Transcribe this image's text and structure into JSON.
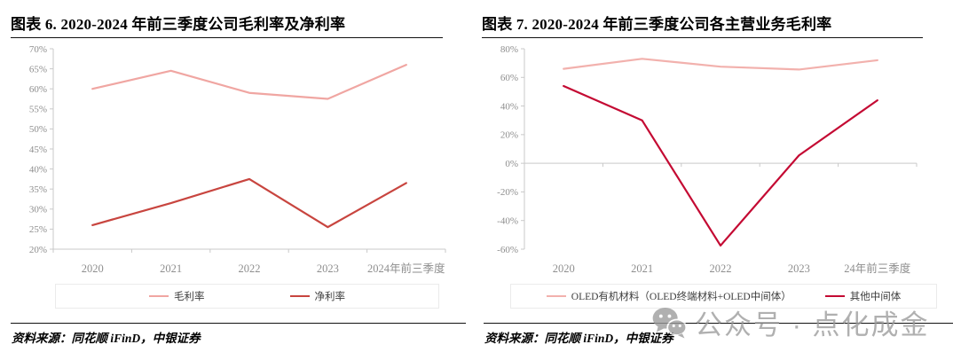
{
  "panels": [
    {
      "title": "图表 6. 2020-2024 年前三季度公司毛利率及净利率",
      "source": "资料来源：同花顺 iFinD，中银证券"
    },
    {
      "title": "图表 7. 2020-2024 年前三季度公司各主营业务毛利率",
      "source": "资料来源：同花顺 iFinD，中银证券"
    }
  ],
  "chart_data": [
    {
      "type": "line",
      "title": "图表 6. 2020-2024 年前三季度公司毛利率及净利率",
      "categories": [
        "2020",
        "2021",
        "2022",
        "2023",
        "2024年前三季度"
      ],
      "series": [
        {
          "name": "毛利率",
          "color": "#F0A6A2",
          "values": [
            60,
            64.5,
            59,
            57.5,
            66
          ]
        },
        {
          "name": "净利率",
          "color": "#C8453F",
          "values": [
            26,
            31.5,
            37.5,
            25.5,
            36.5
          ]
        }
      ],
      "ylim": [
        20,
        70
      ],
      "ytick_step": 5,
      "ytick_labels": [
        "20%",
        "25%",
        "30%",
        "35%",
        "40%",
        "45%",
        "50%",
        "55%",
        "60%",
        "65%",
        "70%"
      ],
      "x_axis_at": 20,
      "grid": false,
      "legend_position": "bottom",
      "axis_color": "#c9c9c9",
      "tick_label_color": "#8e8e8e"
    },
    {
      "type": "line",
      "title": "图表 7. 2020-2024 年前三季度公司各主营业务毛利率",
      "categories": [
        "2020",
        "2021",
        "2022",
        "2023",
        "24年前三季度"
      ],
      "series": [
        {
          "name": "OLED有机材料（OLED终端材料+OLED中间体）",
          "color": "#F2B1AD",
          "values": [
            66,
            73,
            67.5,
            65.5,
            72
          ]
        },
        {
          "name": "其他中间体",
          "color": "#C40A33",
          "values": [
            54,
            30,
            -57.5,
            5.5,
            44
          ]
        }
      ],
      "ylim": [
        -60,
        80
      ],
      "ytick_step": 20,
      "ytick_labels": [
        "-60%",
        "-40%",
        "-20%",
        "0%",
        "20%",
        "40%",
        "60%",
        "80%"
      ],
      "x_axis_at": 0,
      "grid": false,
      "legend_position": "bottom",
      "axis_color": "#c9c9c9",
      "tick_label_color": "#8e8e8e"
    }
  ],
  "watermark": {
    "icon": "wechat-icon",
    "text": "公众号 · 点化成金",
    "color": "#9a9a9a"
  }
}
